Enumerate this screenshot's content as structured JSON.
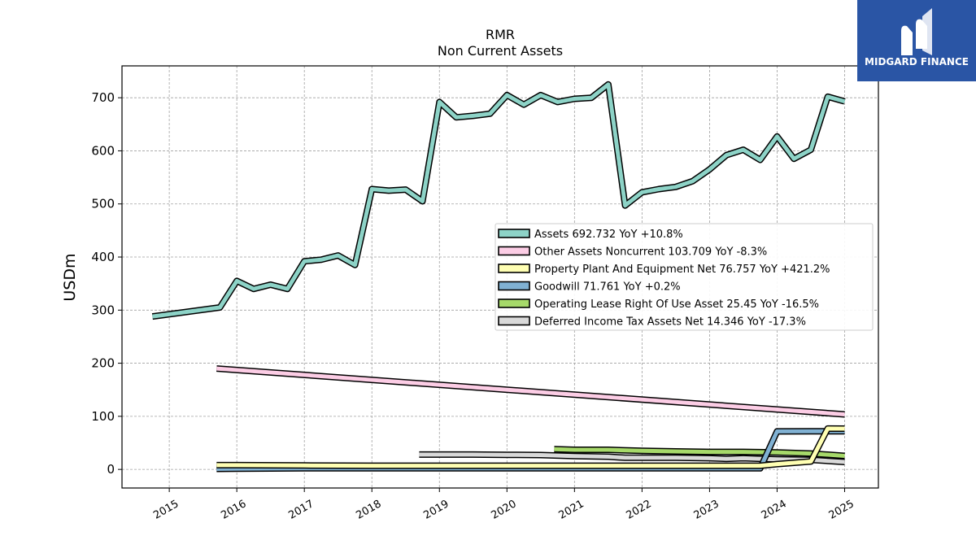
{
  "chart_data": {
    "type": "line",
    "title": "RMR",
    "subtitle": "Non Current  Assets",
    "ylabel": "USDm",
    "xlabel": "",
    "ylim": [
      -35,
      760
    ],
    "xlim": [
      2014.3,
      2025.5
    ],
    "yticks": [
      0,
      100,
      200,
      300,
      400,
      500,
      600,
      700
    ],
    "xticks": [
      2015,
      2016,
      2017,
      2018,
      2019,
      2020,
      2021,
      2022,
      2023,
      2024,
      2025
    ],
    "grid": true,
    "legend_position": "center-right",
    "series": [
      {
        "name": "Deferred Income Tax Assets Net",
        "legend": "Deferred Income Tax Assets Net  14.346 YoY -17.3%",
        "color": "#d9d9d9",
        "x": [
          2018.7,
          2019.0,
          2019.5,
          2020.0,
          2020.5,
          2021.0,
          2021.5,
          2021.75,
          2022.0,
          2022.5,
          2023.0,
          2023.25,
          2023.5,
          2023.75,
          2024.0,
          2024.5,
          2025.0
        ],
        "y": [
          28,
          28,
          28,
          27.5,
          27,
          25,
          24,
          22,
          22,
          22,
          21,
          20,
          21,
          20,
          19,
          18,
          14
        ]
      },
      {
        "name": "Operating Lease Right Of Use Asset",
        "legend": "Operating Lease Right Of Use Asset  25.45 YoY -16.5%",
        "color": "#a6d96a",
        "x": [
          2020.7,
          2021.0,
          2021.5,
          2022.0,
          2022.5,
          2023.0,
          2023.5,
          2024.0,
          2024.5,
          2025.0
        ],
        "y": [
          38,
          37,
          37,
          35,
          34,
          33,
          33,
          32,
          30,
          25.5
        ]
      },
      {
        "name": "Goodwill",
        "legend": "Goodwill  71.761 YoY +0.2%",
        "color": "#80b1d3",
        "x": [
          2015.7,
          2016.0,
          2017.0,
          2018.0,
          2019.0,
          2020.0,
          2021.0,
          2022.0,
          2023.0,
          2023.75,
          2024.0,
          2024.5,
          2025.0
        ],
        "y": [
          1,
          1.5,
          2,
          2,
          2,
          2,
          2,
          2,
          2,
          2,
          71.6,
          71.7,
          71.8
        ]
      },
      {
        "name": "Property Plant And Equipment Net",
        "legend": "Property Plant And Equipment Net  76.757 YoY +421.2%",
        "color": "#ffffb3",
        "x": [
          2015.7,
          2016.0,
          2017.0,
          2018.0,
          2019.0,
          2020.0,
          2021.0,
          2022.0,
          2023.0,
          2023.75,
          2024.0,
          2024.5,
          2024.75,
          2025.0
        ],
        "y": [
          8,
          8,
          7.5,
          7,
          7,
          7,
          7,
          7,
          7,
          7,
          10,
          15,
          77,
          76.8
        ]
      },
      {
        "name": "Other Assets Noncurrent",
        "legend": "Other Assets Noncurrent  103.709 YoY -8.3%",
        "color": "#fccde5",
        "x": [
          2015.7,
          2025.0
        ],
        "y": [
          190,
          103.7
        ]
      },
      {
        "name": "Assets",
        "legend": "Assets  692.732 YoY +10.8%",
        "color": "#8dd3c7",
        "x": [
          2014.75,
          2015.75,
          2016.0,
          2016.25,
          2016.5,
          2016.75,
          2017.0,
          2017.25,
          2017.5,
          2017.75,
          2018.0,
          2018.25,
          2018.5,
          2018.75,
          2019.0,
          2019.25,
          2019.5,
          2019.75,
          2020.0,
          2020.25,
          2020.5,
          2020.75,
          2021.0,
          2021.25,
          2021.5,
          2021.75,
          2022.0,
          2022.25,
          2022.5,
          2022.75,
          2023.0,
          2023.25,
          2023.5,
          2023.75,
          2024.0,
          2024.25,
          2024.5,
          2024.75,
          2025.0
        ],
        "y": [
          288,
          305,
          355,
          340,
          348,
          340,
          392,
          395,
          403,
          385,
          528,
          525,
          527,
          505,
          692,
          663,
          666,
          670,
          705,
          687,
          705,
          692,
          698,
          700,
          725,
          497,
          522,
          528,
          532,
          543,
          565,
          592,
          602,
          583,
          627,
          585,
          602,
          702,
          693
        ]
      }
    ],
    "legend_order": [
      "Assets",
      "Other Assets Noncurrent",
      "Property Plant And Equipment Net",
      "Goodwill",
      "Operating Lease Right Of Use Asset",
      "Deferred Income Tax Assets Net"
    ]
  },
  "logo": {
    "text": "MIDGARD FINANCE",
    "background": "#2a55a5"
  }
}
